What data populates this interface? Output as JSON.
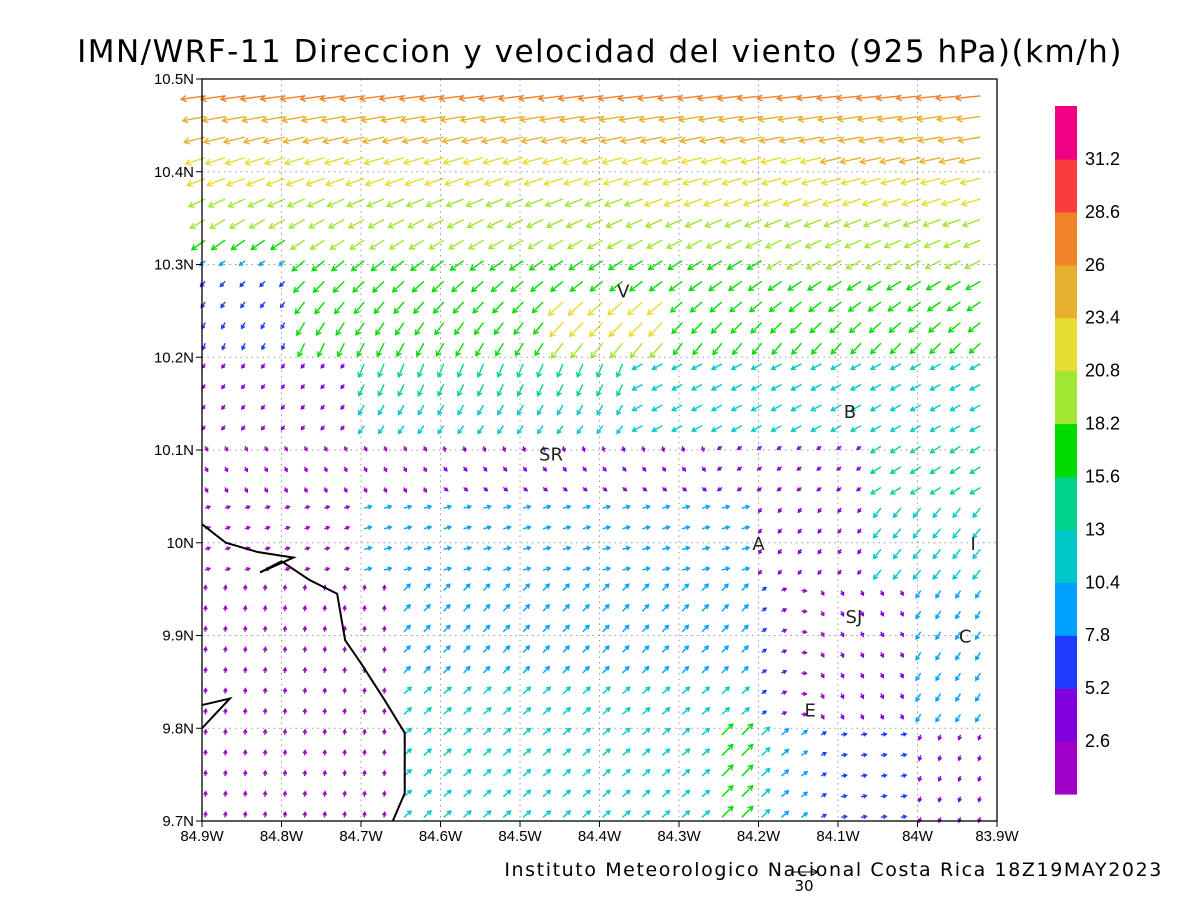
{
  "chart_data": {
    "type": "vector_field",
    "title": "IMN/WRF-11 Direccion y velocidad del viento (925 hPa)(km/h)",
    "footer": "Instituto Meteorologico Nacional Costa Rica 18Z19MAY2023",
    "xlim": [
      -84.9,
      -83.9
    ],
    "ylim": [
      9.7,
      10.5
    ],
    "x_ticks": [
      {
        "value": -84.9,
        "label": "84.9W"
      },
      {
        "value": -84.8,
        "label": "84.8W"
      },
      {
        "value": -84.7,
        "label": "84.7W"
      },
      {
        "value": -84.6,
        "label": "84.6W"
      },
      {
        "value": -84.5,
        "label": "84.5W"
      },
      {
        "value": -84.4,
        "label": "84.4W"
      },
      {
        "value": -84.3,
        "label": "84.3W"
      },
      {
        "value": -84.2,
        "label": "84.2W"
      },
      {
        "value": -84.1,
        "label": "84.1W"
      },
      {
        "value": -84.0,
        "label": "84W"
      },
      {
        "value": -83.9,
        "label": "83.9W"
      }
    ],
    "y_ticks": [
      {
        "value": 9.7,
        "label": "9.7N"
      },
      {
        "value": 9.8,
        "label": "9.8N"
      },
      {
        "value": 9.9,
        "label": "9.9N"
      },
      {
        "value": 10.0,
        "label": "10N"
      },
      {
        "value": 10.1,
        "label": "10.1N"
      },
      {
        "value": 10.2,
        "label": "10.2N"
      },
      {
        "value": 10.3,
        "label": "10.3N"
      },
      {
        "value": 10.4,
        "label": "10.4N"
      },
      {
        "value": 10.5,
        "label": "10.5N"
      }
    ],
    "grid": true,
    "colorbar": {
      "colors": [
        "#a000c8",
        "#8200dc",
        "#1e3cff",
        "#00a0ff",
        "#00c8c8",
        "#00d28c",
        "#00dc00",
        "#a0e632",
        "#e6dc32",
        "#e6af2d",
        "#f08228",
        "#fa3c3c",
        "#f00082"
      ],
      "thresholds": [
        2.6,
        5.2,
        7.8,
        10.4,
        13,
        15.6,
        18.2,
        20.8,
        23.4,
        26,
        28.6,
        31.2
      ],
      "labels": [
        "2.6",
        "5.2",
        "7.8",
        "10.4",
        "13",
        "15.6",
        "18.2",
        "20.8",
        "23.4",
        "26",
        "28.6",
        "31.2"
      ]
    },
    "reference_vector": {
      "label": "30",
      "value": 30
    },
    "cities": [
      {
        "name": "V",
        "lon": -84.37,
        "lat": 10.272
      },
      {
        "name": "SR",
        "lon": -84.461,
        "lat": 10.096
      },
      {
        "name": "B",
        "lon": -84.085,
        "lat": 10.142
      },
      {
        "name": "A",
        "lon": -84.2,
        "lat": 10.0
      },
      {
        "name": "I",
        "lon": -83.93,
        "lat": 10.0
      },
      {
        "name": "SJ",
        "lon": -84.08,
        "lat": 9.921
      },
      {
        "name": "C",
        "lon": -83.94,
        "lat": 9.9
      },
      {
        "name": "E",
        "lon": -84.135,
        "lat": 9.82
      }
    ],
    "coastline": [
      [
        -84.9,
        10.02
      ],
      [
        -84.87,
        10.0
      ],
      [
        -84.83,
        9.99
      ],
      [
        -84.785,
        9.984
      ],
      [
        -84.827,
        9.968
      ],
      [
        -84.8,
        9.98
      ],
      [
        -84.765,
        9.96
      ],
      [
        -84.73,
        9.945
      ],
      [
        -84.72,
        9.895
      ],
      [
        -84.7,
        9.87
      ],
      [
        -84.67,
        9.83
      ],
      [
        -84.645,
        9.795
      ],
      [
        -84.645,
        9.73
      ],
      [
        -84.66,
        9.7
      ]
    ],
    "coastline_islet": [
      [
        -84.9,
        9.825
      ],
      [
        -84.865,
        9.832
      ],
      [
        -84.9,
        9.8
      ]
    ]
  }
}
